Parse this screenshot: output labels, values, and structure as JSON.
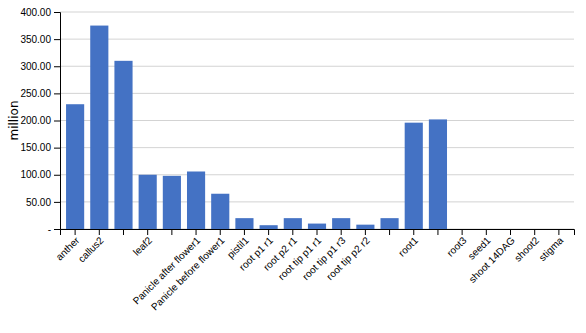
{
  "chart_data": {
    "type": "bar",
    "ylabel": "million",
    "categories": [
      "anther",
      "callus2",
      null,
      "leaf2",
      null,
      "Panicle after flower1",
      "Panicle before flower1",
      "pistil1",
      "root p1 r1",
      "root p2 r1",
      "root tip p1 r1",
      "root tip p1 r3",
      "root tip p2 r2",
      null,
      "root1",
      null,
      "root3",
      "seed1",
      "shoot 14DAG",
      "shoot2",
      "stigma"
    ],
    "values": [
      230,
      375,
      310,
      100,
      98,
      106,
      65,
      20,
      7,
      20,
      10,
      20,
      8,
      20,
      196,
      202,
      0,
      0,
      0,
      0,
      0
    ],
    "color": "#4472C4",
    "ylim": [
      0,
      400
    ],
    "yticks": [
      {
        "value": 0,
        "label": "-"
      },
      {
        "value": 50,
        "label": "50.00"
      },
      {
        "value": 100,
        "label": "100.00"
      },
      {
        "value": 150,
        "label": "150.00"
      },
      {
        "value": 200,
        "label": "200.00"
      },
      {
        "value": 250,
        "label": "250.00"
      },
      {
        "value": 300,
        "label": "300.00"
      },
      {
        "value": 350,
        "label": "350.00"
      },
      {
        "value": 400,
        "label": "400.00"
      }
    ],
    "grid": true
  }
}
